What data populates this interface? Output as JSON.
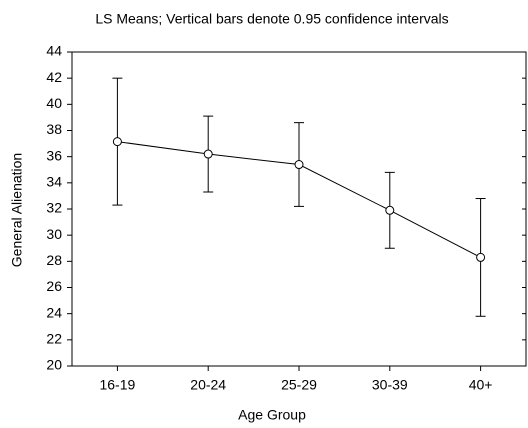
{
  "chart_data": {
    "type": "line",
    "title": "LS Means; Vertical bars denote 0.95 confidence intervals",
    "x_label": "Age Group",
    "y_label": "General Alienation",
    "categories": [
      "16-19",
      "20-24",
      "25-29",
      "30-39",
      "40+"
    ],
    "values": [
      37.15,
      36.2,
      35.4,
      31.9,
      28.3
    ],
    "errors": [
      4.85,
      2.9,
      3.2,
      2.9,
      4.5
    ],
    "color": "#000000",
    "ylim": [
      20,
      44
    ],
    "yticks": [
      20,
      22,
      24,
      26,
      28,
      30,
      32,
      34,
      36,
      38,
      40,
      42,
      44
    ],
    "grid": false
  }
}
